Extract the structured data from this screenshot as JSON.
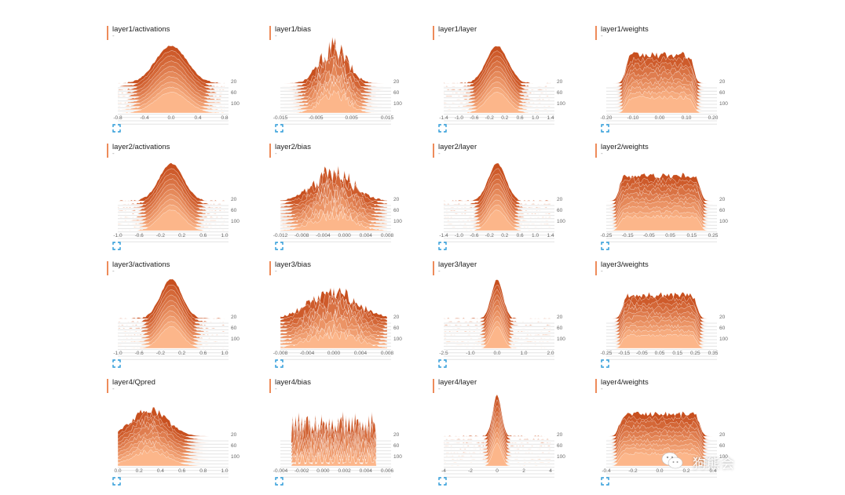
{
  "colors": {
    "accent": "#ee8b5a",
    "dark": "#c8501f",
    "light": "#fcb68a",
    "expand": "#2a9ad8"
  },
  "expand_icon": "expand-icon",
  "panels": [
    {
      "title": "layer1/activations",
      "sub": "-",
      "xticks": [
        "-0.8",
        "-0.4",
        "0.0",
        "0.4",
        "0.8"
      ],
      "yticks": [
        "20",
        "60",
        "100"
      ],
      "shape": "gauss",
      "width": 0.22,
      "n": 10,
      "amp": 1.0
    },
    {
      "title": "layer1/bias",
      "sub": "-",
      "xticks": [
        "-0.015",
        "-0.005",
        "0.005",
        "0.015"
      ],
      "yticks": [
        "20",
        "60",
        "100"
      ],
      "shape": "spiky",
      "width": 0.18,
      "n": 10,
      "amp": 1.1
    },
    {
      "title": "layer1/layer",
      "sub": "-",
      "xticks": [
        "-1.4",
        "-1.0",
        "-0.6",
        "-0.2",
        "0.2",
        "0.6",
        "1.0",
        "1.4"
      ],
      "yticks": [
        "20",
        "60",
        "100"
      ],
      "shape": "gauss",
      "width": 0.15,
      "n": 10,
      "amp": 1.0
    },
    {
      "title": "layer1/weights",
      "sub": "-",
      "xticks": [
        "-0.20",
        "-0.10",
        "0.00",
        "0.10",
        "0.20"
      ],
      "yticks": [
        "20",
        "60",
        "100"
      ],
      "shape": "flat",
      "width": 0.32,
      "n": 10,
      "amp": 1.0
    },
    {
      "title": "layer2/activations",
      "sub": "-",
      "xticks": [
        "-1.0",
        "-0.6",
        "-0.2",
        "0.2",
        "0.6",
        "1.0"
      ],
      "yticks": [
        "20",
        "60",
        "100"
      ],
      "shape": "gauss",
      "width": 0.17,
      "n": 10,
      "amp": 1.0
    },
    {
      "title": "layer2/bias",
      "sub": "-",
      "xticks": [
        "-0.012",
        "-0.008",
        "-0.004",
        "0.000",
        "0.004",
        "0.008"
      ],
      "yticks": [
        "20",
        "60",
        "100"
      ],
      "shape": "spiky",
      "width": 0.26,
      "n": 10,
      "amp": 0.9
    },
    {
      "title": "layer2/layer",
      "sub": "-",
      "xticks": [
        "-1.4",
        "-1.0",
        "-0.6",
        "-0.2",
        "0.2",
        "0.6",
        "1.0",
        "1.4"
      ],
      "yticks": [
        "20",
        "60",
        "100"
      ],
      "shape": "gauss",
      "width": 0.12,
      "n": 10,
      "amp": 1.0
    },
    {
      "title": "layer2/weights",
      "sub": "-",
      "xticks": [
        "-0.25",
        "-0.15",
        "-0.05",
        "0.05",
        "0.15",
        "0.25"
      ],
      "yticks": [
        "20",
        "60",
        "100"
      ],
      "shape": "flat",
      "width": 0.38,
      "n": 10,
      "amp": 0.9
    },
    {
      "title": "layer3/activations",
      "sub": "-",
      "xticks": [
        "-1.0",
        "-0.6",
        "-0.2",
        "0.2",
        "0.6",
        "1.0"
      ],
      "yticks": [
        "20",
        "60",
        "100"
      ],
      "shape": "gauss",
      "width": 0.15,
      "n": 10,
      "amp": 1.05
    },
    {
      "title": "layer3/bias",
      "sub": "-",
      "xticks": [
        "-0.008",
        "-0.004",
        "0.000",
        "0.004",
        "0.008"
      ],
      "yticks": [
        "20",
        "60",
        "100"
      ],
      "shape": "spiky",
      "width": 0.32,
      "n": 10,
      "amp": 0.8
    },
    {
      "title": "layer3/layer",
      "sub": "-",
      "xticks": [
        "-2.5",
        "-1.0",
        "0.0",
        "1.0",
        "2.0"
      ],
      "yticks": [
        "20",
        "60",
        "100"
      ],
      "shape": "gauss",
      "width": 0.08,
      "n": 10,
      "amp": 1.05
    },
    {
      "title": "layer3/weights",
      "sub": "-",
      "xticks": [
        "-0.25",
        "-0.15",
        "-0.05",
        "0.05",
        "0.15",
        "0.25",
        "0.35"
      ],
      "yticks": [
        "20",
        "60",
        "100"
      ],
      "shape": "flat",
      "width": 0.35,
      "n": 10,
      "amp": 0.85
    },
    {
      "title": "layer4/Qpred",
      "sub": "-",
      "xticks": [
        "0.0",
        "0.2",
        "0.4",
        "0.6",
        "0.8",
        "1.0"
      ],
      "yticks": [
        "20",
        "60",
        "100"
      ],
      "shape": "skew",
      "width": 0.3,
      "n": 10,
      "amp": 0.75
    },
    {
      "title": "layer4/bias",
      "sub": "-",
      "xticks": [
        "-0.004",
        "-0.002",
        "0.000",
        "0.002",
        "0.004",
        "0.006"
      ],
      "yticks": [
        "20",
        "60",
        "100"
      ],
      "shape": "spikes",
      "width": 0.4,
      "n": 10,
      "amp": 0.7
    },
    {
      "title": "layer4/layer",
      "sub": "-",
      "xticks": [
        "-4",
        "-2",
        "0",
        "2",
        "4"
      ],
      "yticks": [
        "20",
        "60",
        "100"
      ],
      "shape": "gauss",
      "width": 0.06,
      "n": 10,
      "amp": 1.1
    },
    {
      "title": "layer4/weights",
      "sub": "-",
      "xticks": [
        "-0.4",
        "-0.2",
        "0.0",
        "0.2",
        "0.4"
      ],
      "yticks": [
        "20",
        "60",
        "100"
      ],
      "shape": "flat",
      "width": 0.38,
      "n": 10,
      "amp": 0.8
    }
  ],
  "watermark": {
    "icon": "wechat-icon",
    "text": "狗熊会"
  }
}
